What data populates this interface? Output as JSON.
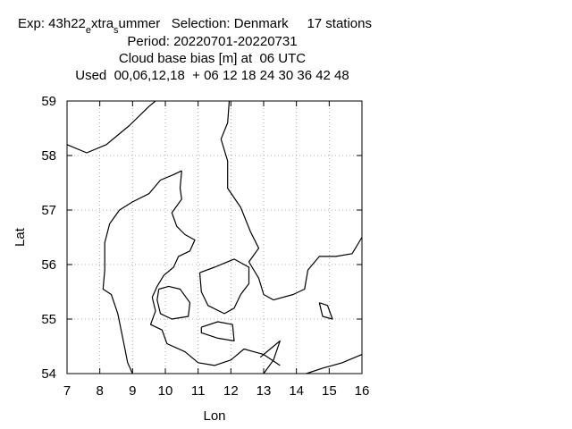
{
  "header": {
    "exp_prefix": "Exp: 43h22",
    "exp_sub1": "e",
    "exp_mid": "xtra",
    "exp_sub2": "s",
    "exp_suffix": "ummer   Selection: Denmark     17 stations",
    "period": "Period: 20220701-20220731",
    "variable": "Cloud base bias [m] at  06 UTC",
    "used": "Used  00,06,12,18  + 06 12 18 24 30 36 42 48"
  },
  "chart_data": {
    "type": "map",
    "xlabel": "Lon",
    "ylabel": "Lat",
    "xlim": [
      7,
      16
    ],
    "ylim": [
      54,
      59
    ],
    "xticks": [
      7,
      8,
      9,
      10,
      11,
      12,
      13,
      14,
      15,
      16
    ],
    "yticks": [
      54,
      55,
      56,
      57,
      58,
      59
    ],
    "grid": true,
    "grid_style": "dotted",
    "coastlines": [
      {
        "name": "Jutland west coast",
        "points": [
          [
            9.0,
            54.0
          ],
          [
            8.85,
            54.2
          ],
          [
            8.75,
            54.5
          ],
          [
            8.65,
            54.8
          ],
          [
            8.55,
            55.1
          ],
          [
            8.35,
            55.45
          ],
          [
            8.1,
            55.55
          ],
          [
            8.15,
            55.9
          ],
          [
            8.15,
            56.4
          ],
          [
            8.3,
            56.75
          ],
          [
            8.6,
            57.0
          ],
          [
            9.0,
            57.15
          ],
          [
            9.5,
            57.3
          ],
          [
            9.85,
            57.55
          ],
          [
            10.25,
            57.65
          ],
          [
            10.5,
            57.72
          ]
        ]
      },
      {
        "name": "Jutland east coast",
        "points": [
          [
            10.5,
            57.72
          ],
          [
            10.45,
            57.4
          ],
          [
            10.5,
            57.2
          ],
          [
            10.2,
            56.95
          ],
          [
            10.35,
            56.7
          ],
          [
            10.6,
            56.55
          ],
          [
            10.9,
            56.45
          ],
          [
            10.75,
            56.25
          ],
          [
            10.4,
            56.15
          ],
          [
            10.25,
            55.95
          ],
          [
            9.95,
            55.8
          ],
          [
            9.75,
            55.6
          ],
          [
            9.6,
            55.4
          ],
          [
            9.7,
            55.15
          ],
          [
            9.55,
            54.9
          ],
          [
            9.9,
            54.8
          ],
          [
            10.05,
            54.55
          ],
          [
            10.6,
            54.4
          ],
          [
            11.0,
            54.2
          ],
          [
            11.5,
            54.15
          ],
          [
            12.0,
            54.25
          ],
          [
            12.4,
            54.45
          ],
          [
            12.7,
            54.4
          ],
          [
            13.0,
            54.35
          ],
          [
            13.5,
            54.15
          ]
        ]
      },
      {
        "name": "Funen",
        "points": [
          [
            9.8,
            55.55
          ],
          [
            10.1,
            55.6
          ],
          [
            10.45,
            55.55
          ],
          [
            10.75,
            55.3
          ],
          [
            10.7,
            55.05
          ],
          [
            10.2,
            55.0
          ],
          [
            9.85,
            55.1
          ],
          [
            9.75,
            55.35
          ],
          [
            9.8,
            55.55
          ]
        ]
      },
      {
        "name": "Zealand",
        "points": [
          [
            11.05,
            55.85
          ],
          [
            11.5,
            55.95
          ],
          [
            12.1,
            56.1
          ],
          [
            12.55,
            55.95
          ],
          [
            12.55,
            55.65
          ],
          [
            12.3,
            55.45
          ],
          [
            12.1,
            55.2
          ],
          [
            11.8,
            55.1
          ],
          [
            11.3,
            55.25
          ],
          [
            11.1,
            55.5
          ],
          [
            11.05,
            55.85
          ]
        ]
      },
      {
        "name": "Lolland Falster",
        "points": [
          [
            11.1,
            54.85
          ],
          [
            11.6,
            54.95
          ],
          [
            12.05,
            54.9
          ],
          [
            12.1,
            54.6
          ],
          [
            11.6,
            54.65
          ],
          [
            11.1,
            54.75
          ],
          [
            11.1,
            54.85
          ]
        ]
      },
      {
        "name": "Sweden west coast",
        "points": [
          [
            11.95,
            59.0
          ],
          [
            11.9,
            58.6
          ],
          [
            11.7,
            58.3
          ],
          [
            11.9,
            57.9
          ],
          [
            11.9,
            57.4
          ],
          [
            12.3,
            57.05
          ],
          [
            12.6,
            56.6
          ],
          [
            12.85,
            56.3
          ],
          [
            12.55,
            56.05
          ],
          [
            12.85,
            55.75
          ],
          [
            13.0,
            55.45
          ],
          [
            13.3,
            55.35
          ],
          [
            13.9,
            55.45
          ],
          [
            14.25,
            55.55
          ],
          [
            14.35,
            55.9
          ],
          [
            14.7,
            56.15
          ],
          [
            15.2,
            56.15
          ],
          [
            15.7,
            56.2
          ],
          [
            16.0,
            56.5
          ]
        ]
      },
      {
        "name": "Norway south coast",
        "points": [
          [
            7.0,
            58.2
          ],
          [
            7.6,
            58.05
          ],
          [
            8.2,
            58.2
          ],
          [
            8.9,
            58.55
          ],
          [
            9.5,
            58.9
          ],
          [
            9.7,
            59.0
          ]
        ]
      },
      {
        "name": "Bornholm",
        "points": [
          [
            14.7,
            55.3
          ],
          [
            14.95,
            55.25
          ],
          [
            15.1,
            55.0
          ],
          [
            14.8,
            55.05
          ],
          [
            14.7,
            55.3
          ]
        ]
      },
      {
        "name": "German Baltic coast",
        "points": [
          [
            13.0,
            54.0
          ],
          [
            13.3,
            54.25
          ],
          [
            13.5,
            54.6
          ],
          [
            13.2,
            54.45
          ],
          [
            12.9,
            54.3
          ]
        ]
      },
      {
        "name": "Polish coast",
        "points": [
          [
            14.3,
            54.0
          ],
          [
            14.8,
            54.1
          ],
          [
            15.4,
            54.2
          ],
          [
            16.0,
            54.35
          ]
        ]
      }
    ]
  }
}
